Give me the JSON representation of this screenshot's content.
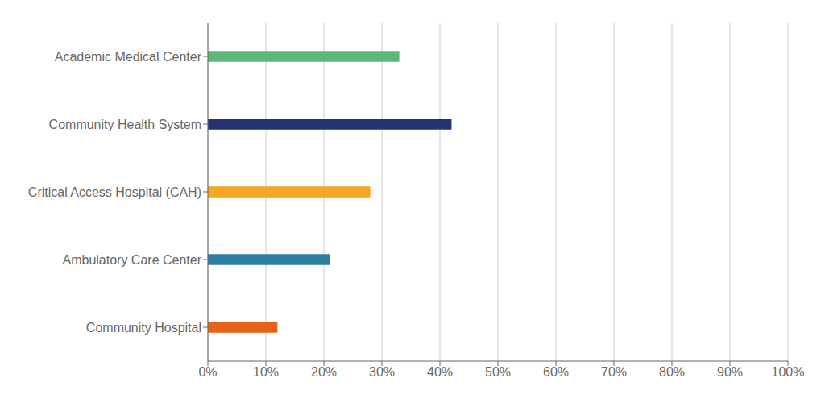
{
  "chart_data": {
    "type": "bar",
    "orientation": "horizontal",
    "categories": [
      "Community Hospital",
      "Ambulatory Care Center",
      "Critical Access Hospital (CAH)",
      "Community Health System",
      "Academic Medical Center"
    ],
    "values": [
      12,
      21,
      28,
      42,
      33
    ],
    "colors": [
      "#E8621A",
      "#2E7DA3",
      "#F5A623",
      "#253272",
      "#5CB87A"
    ],
    "xlim": [
      0,
      100
    ],
    "xticks": [
      {
        "value": 0,
        "label": "0%"
      },
      {
        "value": 10,
        "label": "10%"
      },
      {
        "value": 20,
        "label": "20%"
      },
      {
        "value": 30,
        "label": "30%"
      },
      {
        "value": 40,
        "label": "40%"
      },
      {
        "value": 50,
        "label": "50%"
      },
      {
        "value": 60,
        "label": "60%"
      },
      {
        "value": 70,
        "label": "70%"
      },
      {
        "value": 80,
        "label": "80%"
      },
      {
        "value": 90,
        "label": "90%"
      },
      {
        "value": 100,
        "label": "100%"
      }
    ],
    "grid": true
  }
}
